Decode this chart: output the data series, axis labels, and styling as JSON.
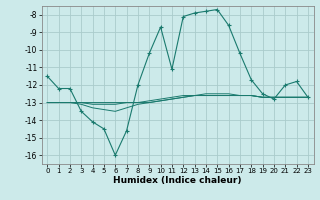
{
  "xlabel": "Humidex (Indice chaleur)",
  "background_color": "#cceaea",
  "grid_color": "#aacccc",
  "line_color": "#1a7a6e",
  "xlim": [
    -0.5,
    23.5
  ],
  "ylim": [
    -16.5,
    -7.5
  ],
  "yticks": [
    -16,
    -15,
    -14,
    -13,
    -12,
    -11,
    -10,
    -9,
    -8
  ],
  "xticks": [
    0,
    1,
    2,
    3,
    4,
    5,
    6,
    7,
    8,
    9,
    10,
    11,
    12,
    13,
    14,
    15,
    16,
    17,
    18,
    19,
    20,
    21,
    22,
    23
  ],
  "main_line_y": [
    -11.5,
    -12.2,
    -12.2,
    -13.5,
    -14.1,
    -14.5,
    -16.0,
    -14.6,
    -12.0,
    -10.2,
    -8.7,
    -11.1,
    -8.1,
    -7.9,
    -7.8,
    -7.7,
    -8.6,
    -10.2,
    -11.7,
    -12.5,
    -12.8,
    -12.0,
    -11.8,
    -12.7
  ],
  "line2_y": [
    -13.0,
    -13.0,
    -13.0,
    -13.0,
    -13.0,
    -13.0,
    -13.0,
    -13.0,
    -13.0,
    -13.0,
    -12.9,
    -12.8,
    -12.7,
    -12.6,
    -12.6,
    -12.6,
    -12.6,
    -12.6,
    -12.6,
    -12.7,
    -12.7,
    -12.7,
    -12.7,
    -12.7
  ],
  "line3_y": [
    -13.0,
    -13.0,
    -13.0,
    -13.0,
    -13.1,
    -13.1,
    -13.1,
    -13.0,
    -13.0,
    -12.9,
    -12.8,
    -12.7,
    -12.6,
    -12.6,
    -12.5,
    -12.5,
    -12.5,
    -12.6,
    -12.6,
    -12.7,
    -12.7,
    -12.7,
    -12.7,
    -12.7
  ],
  "line4_y": [
    -13.0,
    -13.0,
    -13.0,
    -13.1,
    -13.3,
    -13.4,
    -13.5,
    -13.3,
    -13.1,
    -13.0,
    -12.9,
    -12.8,
    -12.7,
    -12.6,
    -12.6,
    -12.6,
    -12.6,
    -12.6,
    -12.6,
    -12.7,
    -12.7,
    -12.7,
    -12.7,
    -12.7
  ]
}
